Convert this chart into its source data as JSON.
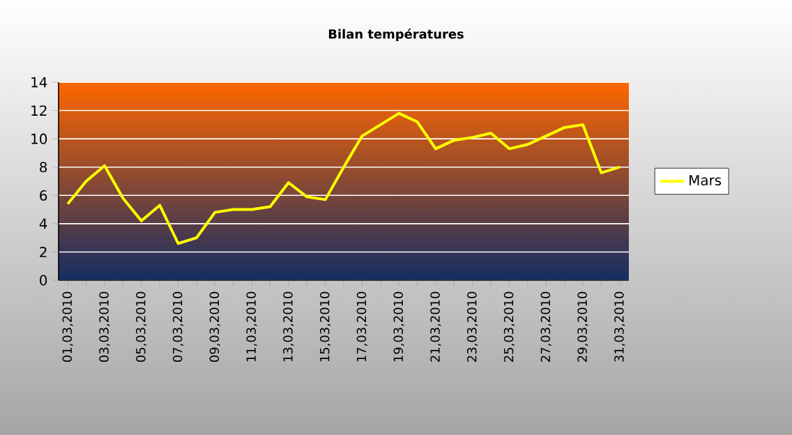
{
  "chart_data": {
    "type": "line",
    "title": "Bilan températures",
    "categories": [
      "01,03,2010",
      null,
      "03,03,2010",
      null,
      "05,03,2010",
      null,
      "07,03,2010",
      null,
      "09,03,2010",
      null,
      "11,03,2010",
      null,
      "13,03,2010",
      null,
      "15,03,2010",
      null,
      "17,03,2010",
      null,
      "19,03,2010",
      null,
      "21,03,2010",
      null,
      "23,03,2010",
      null,
      "25,03,2010",
      null,
      "27,03,2010",
      null,
      "29,03,2010",
      null,
      "31,03,2010"
    ],
    "series": [
      {
        "name": "Mars",
        "color": "#ffff00",
        "values": [
          5.4,
          7.0,
          8.1,
          5.8,
          4.2,
          5.3,
          2.6,
          3.0,
          4.8,
          5.0,
          5.0,
          5.2,
          6.9,
          5.9,
          5.7,
          8.0,
          10.2,
          11.0,
          11.8,
          11.2,
          9.3,
          9.9,
          10.1,
          10.4,
          9.3,
          9.6,
          10.2,
          10.8,
          11.0,
          7.6,
          8.0
        ]
      }
    ],
    "ylim": [
      0,
      14
    ],
    "yticks": [
      0,
      2,
      4,
      6,
      8,
      10,
      12,
      14
    ],
    "grid": "y",
    "legend": "right",
    "marker": "none",
    "line_style": "solid"
  }
}
